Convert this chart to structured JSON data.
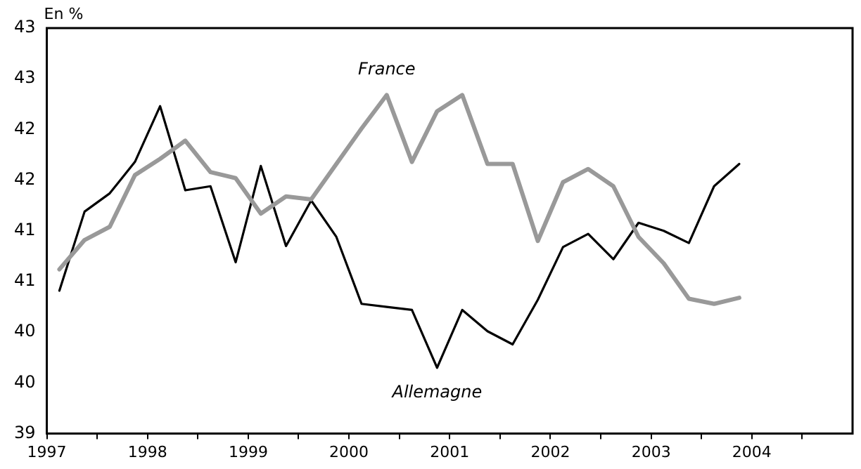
{
  "chart_data": {
    "type": "line",
    "ylabel": "En %",
    "x": [
      1997.125,
      1997.375,
      1997.625,
      1997.875,
      1998.125,
      1998.375,
      1998.625,
      1998.875,
      1999.125,
      1999.375,
      1999.625,
      1999.875,
      2000.125,
      2000.375,
      2000.625,
      2000.875,
      2001.125,
      2001.375,
      2001.625,
      2001.875,
      2002.125,
      2002.375,
      2002.625,
      2002.875,
      2003.125,
      2003.375,
      2003.625,
      2003.875
    ],
    "series": [
      {
        "name": "France",
        "color": "#999999",
        "values": [
          40.62,
          40.91,
          41.04,
          41.55,
          41.71,
          41.89,
          41.58,
          41.52,
          41.17,
          41.34,
          41.31,
          41.66,
          42.01,
          42.34,
          41.68,
          42.18,
          42.34,
          41.66,
          41.66,
          40.9,
          41.48,
          41.61,
          41.44,
          40.94,
          40.68,
          40.33,
          40.28,
          40.34
        ]
      },
      {
        "name": "Allemagne",
        "color": "#000000",
        "values": [
          40.41,
          41.19,
          41.37,
          41.68,
          42.23,
          41.4,
          41.44,
          40.69,
          41.64,
          40.85,
          41.3,
          40.94,
          40.28,
          40.25,
          40.22,
          39.65,
          40.22,
          40.01,
          39.88,
          40.32,
          40.84,
          40.97,
          40.72,
          41.08,
          41.0,
          40.88,
          41.44,
          41.66
        ]
      }
    ],
    "xlim": [
      1997,
      2005
    ],
    "xticks": [
      1997,
      {
        "value": 1997.5,
        "label": null
      },
      1998,
      {
        "value": 1998.5,
        "label": null
      },
      1999,
      {
        "value": 1999.5,
        "label": null
      },
      2000,
      {
        "value": 2000.5,
        "label": null
      },
      2001,
      {
        "value": 2001.5,
        "label": null
      },
      2002,
      {
        "value": 2002.5,
        "label": null
      },
      2003,
      {
        "value": 2003.5,
        "label": null
      },
      2004,
      {
        "value": 2004.5,
        "label": null
      }
    ],
    "ylim": [
      39,
      43
    ],
    "yticks": [
      39,
      {
        "value": 39.5,
        "label": "40"
      },
      40,
      {
        "value": 40.5,
        "label": "41"
      },
      41,
      {
        "value": 41.5,
        "label": "42"
      },
      42,
      {
        "value": 42.5,
        "label": "43"
      },
      43
    ],
    "grid": false,
    "legend": false,
    "marker": "none",
    "line_style": "solid"
  }
}
